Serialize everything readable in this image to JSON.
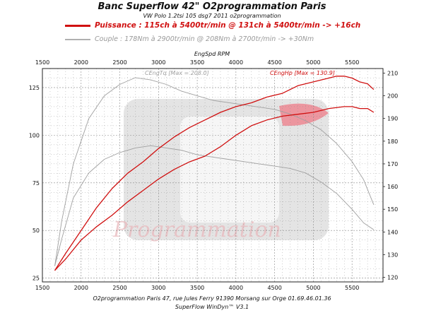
{
  "header": {
    "title": "Banc Superflow 42\" O2programmation Paris",
    "subtitle": "VW Polo 1.2tsi 105 dsg7 2011 o2programmation"
  },
  "legend": {
    "power": "Puissance : 115ch à 5400tr/min @ 131ch à 5400tr/min -> +16ch",
    "torque": "Couple : 178Nm à 2900tr/min @ 208Nm à 2700tr/min -> +30Nm"
  },
  "footer": {
    "line1": "O2programmation Paris 47, rue Jules Ferry 91390 Morsang sur Orge 01.69.46.01.36",
    "line2": "SuperFlow WinDyn™ V3.1"
  },
  "watermark": "Programmation",
  "colors": {
    "power": "#d01010",
    "torque": "#a0a0a0",
    "grid": "#888888"
  },
  "chart_data": {
    "type": "line",
    "xlabel": "EngSpd RPM",
    "x_range": [
      1500,
      5900
    ],
    "x_ticks": [
      1500,
      2000,
      2500,
      3000,
      3500,
      4000,
      4500,
      5000,
      5500
    ],
    "left_axis": {
      "range": [
        23,
        135
      ],
      "ticks": [
        25,
        50,
        75,
        100,
        125
      ]
    },
    "right_axis": {
      "range": [
        118,
        212
      ],
      "ticks": [
        120,
        130,
        140,
        150,
        160,
        170,
        180,
        190,
        200,
        210
      ]
    },
    "grid": true,
    "annotations": {
      "power_max": "CEngHp [Max = 130.9]",
      "torque_max": "CEngTq [Max = 208.0]"
    },
    "series": [
      {
        "name": "Puissance O2programmation",
        "axis": "left",
        "color": "#d01010",
        "x": [
          1660,
          1800,
          2000,
          2200,
          2400,
          2600,
          2800,
          3000,
          3200,
          3400,
          3600,
          3800,
          4000,
          4200,
          4400,
          4600,
          4800,
          5000,
          5200,
          5300,
          5400,
          5500,
          5600,
          5700,
          5780
        ],
        "y": [
          29,
          38,
          50,
          62,
          72,
          80,
          86,
          93,
          99,
          104,
          108,
          112,
          115,
          117,
          120,
          122,
          126,
          128,
          130,
          131,
          131,
          130,
          128,
          127,
          124
        ]
      },
      {
        "name": "Puissance origine",
        "axis": "left",
        "color": "#d01010",
        "x": [
          1660,
          1800,
          2000,
          2200,
          2400,
          2600,
          2800,
          3000,
          3200,
          3400,
          3600,
          3800,
          4000,
          4200,
          4400,
          4600,
          4800,
          5000,
          5200,
          5400,
          5500,
          5600,
          5700,
          5780
        ],
        "y": [
          29,
          35,
          45,
          52,
          58,
          65,
          71,
          77,
          82,
          86,
          89,
          94,
          100,
          105,
          108,
          110,
          111,
          112,
          114,
          115,
          115,
          114,
          114,
          112
        ]
      },
      {
        "name": "Couple O2programmation",
        "axis": "right",
        "color": "#a0a0a0",
        "x": [
          1660,
          1750,
          1900,
          2100,
          2300,
          2500,
          2700,
          2900,
          3100,
          3300,
          3500,
          3700,
          3900,
          4100,
          4300,
          4500,
          4700,
          4900,
          5100,
          5300,
          5500,
          5650,
          5780
        ],
        "y": [
          125,
          145,
          170,
          190,
          200,
          205,
          208,
          207,
          205,
          202,
          200,
          198,
          197,
          196,
          195,
          194,
          192,
          189,
          185,
          179,
          171,
          163,
          152
        ]
      },
      {
        "name": "Couple origine",
        "axis": "right",
        "color": "#a0a0a0",
        "x": [
          1660,
          1750,
          1900,
          2100,
          2300,
          2500,
          2700,
          2900,
          3100,
          3300,
          3500,
          3700,
          3900,
          4100,
          4300,
          4500,
          4700,
          4900,
          5100,
          5300,
          5500,
          5650,
          5780
        ],
        "y": [
          125,
          137,
          155,
          166,
          172,
          175,
          177,
          178,
          177,
          176,
          174,
          173,
          172,
          171,
          170,
          169,
          168,
          166,
          162,
          157,
          150,
          144,
          141
        ]
      }
    ]
  }
}
